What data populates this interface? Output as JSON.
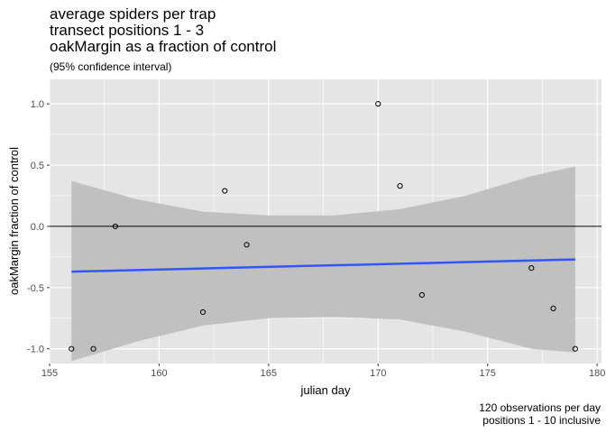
{
  "chart_data": {
    "type": "scatter",
    "title_lines": [
      "average spiders per trap",
      "transect positions 1 - 3",
      "oakMargin as a fraction of control"
    ],
    "subtitle": "(95% confidence interval)",
    "caption_lines": [
      "120 observations per day",
      "positions 1 - 10 inclusive"
    ],
    "xlabel": "julian day",
    "ylabel": "oakMargin fraction of control",
    "xlim": [
      155.0,
      180.2
    ],
    "ylim": [
      -1.12,
      1.2
    ],
    "x_ticks": [
      155,
      160,
      165,
      170,
      175,
      180
    ],
    "x_tick_labels": [
      "155",
      "160",
      "165",
      "170",
      "175",
      "180"
    ],
    "y_ticks": [
      -1.0,
      -0.5,
      0.0,
      0.5,
      1.0
    ],
    "y_tick_labels": [
      "-1.0",
      "-0.5",
      "0.0",
      "0.5",
      "1.0"
    ],
    "grid": true,
    "hline_y": 0,
    "points": [
      {
        "x": 156,
        "y": -1.0
      },
      {
        "x": 157,
        "y": -1.0
      },
      {
        "x": 158,
        "y": 0.0
      },
      {
        "x": 162,
        "y": -0.7
      },
      {
        "x": 163,
        "y": 0.29
      },
      {
        "x": 164,
        "y": -0.15
      },
      {
        "x": 170,
        "y": 1.0
      },
      {
        "x": 171,
        "y": 0.33
      },
      {
        "x": 172,
        "y": -0.56
      },
      {
        "x": 177,
        "y": -0.34
      },
      {
        "x": 178,
        "y": -0.67
      },
      {
        "x": 179,
        "y": -1.0
      }
    ],
    "fit_line": {
      "x": [
        156,
        179
      ],
      "y": [
        -0.37,
        -0.27
      ]
    },
    "confidence_band": {
      "x": [
        156,
        159,
        162,
        165,
        168,
        171,
        174,
        177,
        179
      ],
      "upper": [
        0.37,
        0.22,
        0.12,
        0.09,
        0.09,
        0.14,
        0.25,
        0.41,
        0.49
      ],
      "lower": [
        -1.1,
        -0.94,
        -0.81,
        -0.75,
        -0.74,
        -0.76,
        -0.86,
        -1.0,
        -1.03
      ]
    },
    "colors": {
      "panel_bg": "#e5e5e5",
      "grid": "#ffffff",
      "band": "#bebebe",
      "fit": "#3355ff",
      "points": "#000000",
      "hline": "#000000"
    }
  }
}
